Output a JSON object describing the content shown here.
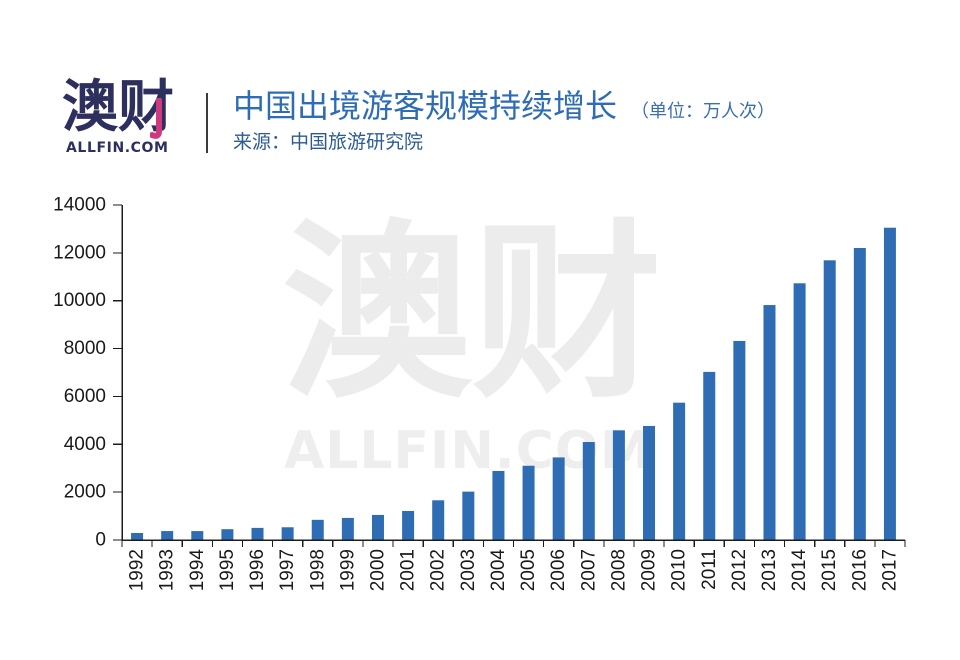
{
  "logo": {
    "mark": "澳财",
    "wordmark": "ALLFIN.COM"
  },
  "watermark": {
    "mark": "澳财",
    "wordmark": "ALLFIN.COM"
  },
  "colors": {
    "bar": "#2e6db4",
    "title": "#2e6cb3",
    "logo": "#2d2f5e",
    "logo_accent": "#cf3a7f"
  },
  "chart_data": {
    "type": "bar",
    "title": "中国出境游客规模持续增长",
    "unit_label": "（单位：万人次）",
    "source": "来源：中国旅游研究院",
    "categories": [
      "1992",
      "1993",
      "1994",
      "1995",
      "1996",
      "1997",
      "1998",
      "1999",
      "2000",
      "2001",
      "2002",
      "2003",
      "2004",
      "2005",
      "2006",
      "2007",
      "2008",
      "2009",
      "2010",
      "2011",
      "2012",
      "2013",
      "2014",
      "2015",
      "2016",
      "2017"
    ],
    "values": [
      293,
      374,
      373,
      452,
      506,
      532,
      843,
      923,
      1047,
      1213,
      1660,
      2022,
      2885,
      3103,
      3452,
      4095,
      4584,
      4766,
      5739,
      7025,
      8318,
      9819,
      10728,
      11689,
      12203,
      13051
    ],
    "ylim": [
      0,
      14000
    ],
    "yticks": [
      0,
      2000,
      4000,
      6000,
      8000,
      10000,
      12000,
      14000
    ],
    "grid": false,
    "legend": "none"
  }
}
